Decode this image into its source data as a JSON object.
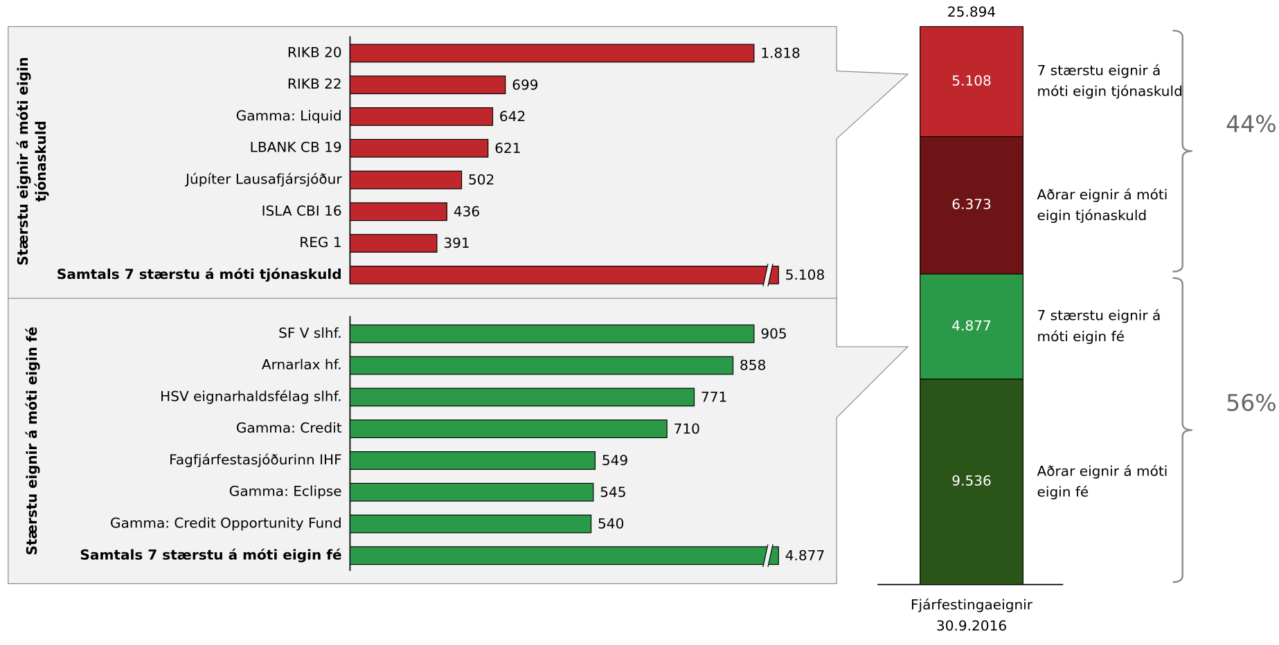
{
  "chart_data": [
    {
      "type": "hbar",
      "y_label": "Stærstu eignir á móti eigin tjónaskuld",
      "color": "#c0272d",
      "axis_break": true,
      "categories": [
        "RIKB 20",
        "RIKB 22",
        "Gamma: Liquid",
        "LBANK CB 19",
        "Júpíter Lausafjársjóður",
        "ISLA CBI 16",
        "REG 1",
        "Samtals 7 stærstu á móti tjónaskuld"
      ],
      "values": [
        1818,
        699,
        642,
        621,
        502,
        436,
        391,
        5108
      ],
      "value_labels": [
        "1.818",
        "699",
        "642",
        "621",
        "502",
        "436",
        "391",
        "5.108"
      ]
    },
    {
      "type": "hbar",
      "y_label": "Stærstu eignir á móti eigin fé",
      "color": "#2a9a48",
      "axis_break": true,
      "categories": [
        "SF V slhf.",
        "Arnarlax hf.",
        "HSV eignarhaldsfélag slhf.",
        "Gamma: Credit",
        "Fagfjárfestasjóðurinn IHF",
        "Gamma: Eclipse",
        "Gamma: Credit Opportunity Fund",
        "Samtals 7 stærstu á móti eigin fé"
      ],
      "values": [
        905,
        858,
        771,
        710,
        549,
        545,
        540,
        4877
      ],
      "value_labels": [
        "905",
        "858",
        "771",
        "710",
        "549",
        "545",
        "540",
        "4.877"
      ]
    },
    {
      "type": "stacked_bar",
      "categories": [
        "Fjárfestingaeignir 30.9.2016"
      ],
      "total": 25894,
      "total_label": "25.894",
      "series": [
        {
          "name": "7 stærstu eignir á móti eigin tjónaskuld",
          "color": "#c0272d",
          "values": [
            5108
          ],
          "value_labels": [
            "5.108"
          ]
        },
        {
          "name": "Aðrar eignir á móti eigin tjónaskuld",
          "color": "#6e1416",
          "values": [
            6373
          ],
          "value_labels": [
            "6.373"
          ]
        },
        {
          "name": "7 stærstu eignir á móti eigin fé",
          "color": "#2a9a48",
          "values": [
            4877
          ],
          "value_labels": [
            "4.877"
          ]
        },
        {
          "name": "Aðrar eignir á móti eigin fé",
          "color": "#2a5418",
          "values": [
            9536
          ],
          "value_labels": [
            "9.536"
          ]
        }
      ],
      "groups": [
        {
          "value": 44,
          "label": "44%"
        },
        {
          "value": 56,
          "label": "56%"
        }
      ]
    }
  ]
}
